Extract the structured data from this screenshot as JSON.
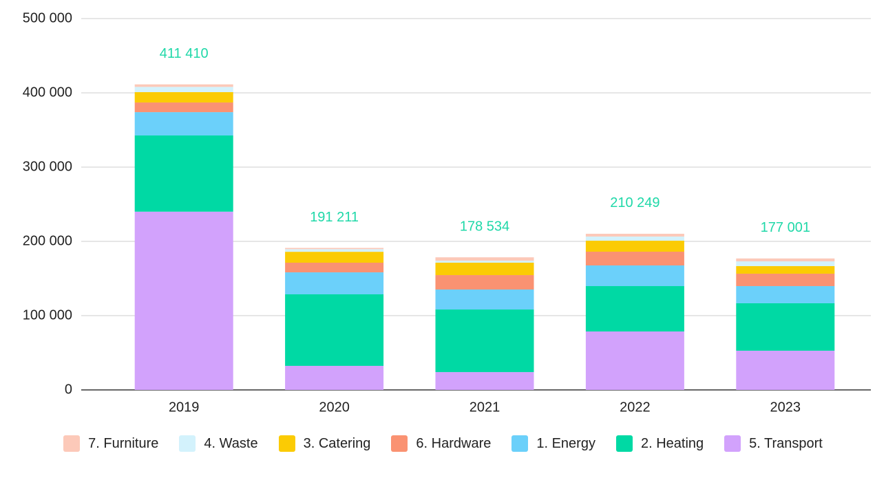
{
  "chart_data": {
    "type": "stacked_bar",
    "categories": [
      "2019",
      "2020",
      "2021",
      "2022",
      "2023"
    ],
    "series": [
      {
        "name": "7. Furniture",
        "color": "#fcc9b9",
        "values": [
          3410,
          1711,
          4534,
          3749,
          3901
        ]
      },
      {
        "name": "4. Waste",
        "color": "#d3f2fc",
        "values": [
          7000,
          3500,
          2700,
          5600,
          6400
        ]
      },
      {
        "name": "3. Catering",
        "color": "#fbcb04",
        "values": [
          14000,
          14700,
          16700,
          14800,
          10200
        ]
      },
      {
        "name": "6. Hardware",
        "color": "#fa9272",
        "values": [
          13000,
          13000,
          19400,
          18500,
          16700
        ]
      },
      {
        "name": "1. Energy",
        "color": "#6bd0fa",
        "values": [
          31400,
          29600,
          26900,
          27800,
          23100
        ]
      },
      {
        "name": "2. Heating",
        "color": "#00d9a4",
        "values": [
          102600,
          96300,
          84300,
          61100,
          63900
        ]
      },
      {
        "name": "5. Transport",
        "color": "#d2a2fc",
        "values": [
          240000,
          32400,
          24000,
          78700,
          52800
        ]
      }
    ],
    "totals": [
      411410,
      191211,
      178534,
      210249,
      177001
    ],
    "total_labels": [
      "411 410",
      "191 211",
      "178 534",
      "210 249",
      "177 001"
    ],
    "total_color": "#1fd8a8",
    "ylim": [
      0,
      500000
    ],
    "yticks": [
      0,
      {
        "value": 100000,
        "label": "100 000"
      },
      {
        "value": 200000,
        "label": "200 000"
      },
      {
        "value": 300000,
        "label": "300 000"
      },
      {
        "value": 400000,
        "label": "400 000"
      },
      {
        "value": 500000,
        "label": "500 000"
      }
    ],
    "grid": true
  }
}
